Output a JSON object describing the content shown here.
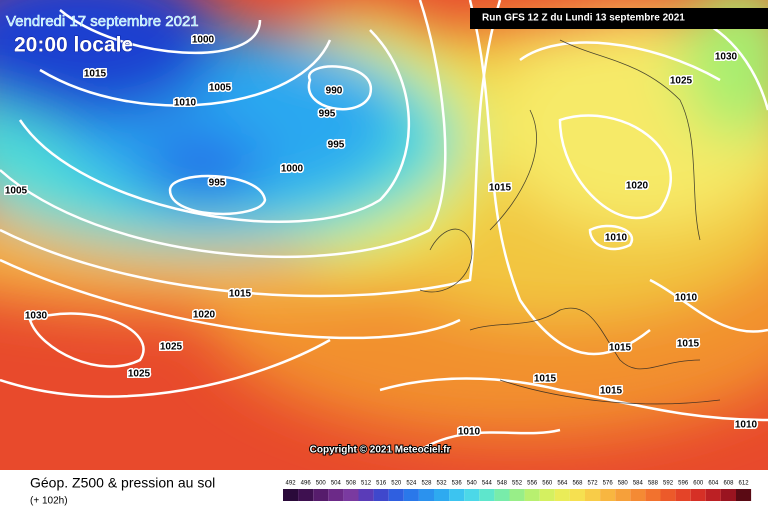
{
  "header": {
    "date": "Vendredi 17 septembre 2021",
    "time": "20:00 locale",
    "run": "Run GFS 12 Z du Lundi 13 septembre 2021"
  },
  "map": {
    "copyright": "Copyright © 2021 Meteociel.fr",
    "isobar_labels": [
      "1000",
      "1005",
      "1015",
      "1010",
      "990",
      "995",
      "995",
      "1000",
      "995",
      "1005",
      "1015",
      "1020",
      "1010",
      "1025",
      "1030",
      "1015",
      "1020",
      "1030",
      "1025",
      "1025",
      "1010",
      "1015",
      "1015",
      "1015",
      "1015",
      "1010",
      "1010"
    ]
  },
  "footer": {
    "title": "Géop. Z500 & pression au sol",
    "subtitle": "(+ 102h)"
  },
  "legend": {
    "ticks": [
      492,
      496,
      500,
      504,
      508,
      512,
      516,
      520,
      524,
      528,
      532,
      536,
      540,
      544,
      548,
      552,
      556,
      560,
      564,
      568,
      572,
      576,
      580,
      584,
      588,
      592,
      596,
      600,
      604,
      608,
      612
    ],
    "colors": [
      "#2a0a3a",
      "#3e1050",
      "#561c6c",
      "#6c2a88",
      "#7a3aa0",
      "#5a3cb8",
      "#3f48cc",
      "#2f5fe0",
      "#2a78ea",
      "#2b92ee",
      "#2eaaf0",
      "#3cc4f0",
      "#4cd8e8",
      "#5ee6cc",
      "#78ecaa",
      "#98ee88",
      "#b8f070",
      "#d4f060",
      "#eaec58",
      "#f6e050",
      "#f8cc48",
      "#f8b640",
      "#f6a03a",
      "#f48a34",
      "#f2722e",
      "#ec5a2a",
      "#e44428",
      "#d63026",
      "#bc2024",
      "#9a1420",
      "#5a0a14"
    ]
  }
}
